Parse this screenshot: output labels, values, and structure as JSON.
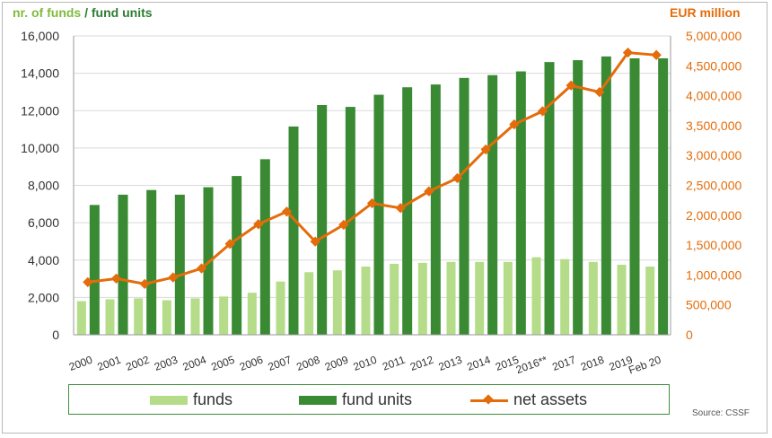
{
  "chart_data": {
    "type": "bar+line",
    "title_left_part1": "nr. of funds",
    "title_left_sep": " / ",
    "title_left_part2": "fund units",
    "title_right": "EUR million",
    "categories": [
      "2000",
      "2001",
      "2002",
      "2003",
      "2004",
      "2005",
      "2006",
      "2007",
      "2008",
      "2009",
      "2010",
      "2011",
      "2012",
      "2013",
      "2014",
      "2015",
      "2016**",
      "2017",
      "2018",
      "2019",
      "Feb 20"
    ],
    "series": [
      {
        "name": "funds",
        "axis": "left",
        "type": "bar",
        "color": "#b5dc88",
        "values": [
          1800,
          1900,
          1950,
          1850,
          1950,
          2050,
          2250,
          2850,
          3350,
          3450,
          3650,
          3800,
          3850,
          3900,
          3900,
          3900,
          4150,
          4050,
          3900,
          3750,
          3650
        ]
      },
      {
        "name": "fund units",
        "axis": "left",
        "type": "bar",
        "color": "#3a8a34",
        "values": [
          6950,
          7500,
          7750,
          7500,
          7900,
          8500,
          9400,
          11150,
          12300,
          12200,
          12850,
          13250,
          13400,
          13750,
          13900,
          14100,
          14600,
          14700,
          14900,
          14800,
          14800
        ]
      },
      {
        "name": "net assets",
        "axis": "right",
        "type": "line",
        "color": "#e46c0a",
        "values": [
          880000,
          940000,
          850000,
          960000,
          1110000,
          1520000,
          1850000,
          2060000,
          1560000,
          1840000,
          2200000,
          2120000,
          2400000,
          2620000,
          3100000,
          3520000,
          3740000,
          4170000,
          4060000,
          4720000,
          4680000
        ]
      }
    ],
    "left_axis": {
      "min": 0,
      "max": 16000,
      "step": 2000,
      "tick_labels": [
        "0",
        "2,000",
        "4,000",
        "6,000",
        "8,000",
        "10,000",
        "12,000",
        "14,000",
        "16,000"
      ]
    },
    "right_axis": {
      "min": 0,
      "max": 5000000,
      "step": 500000,
      "tick_labels": [
        "0",
        "500,000",
        "1,000,000",
        "1,500,000",
        "2,000,000",
        "2,500,000",
        "3,000,000",
        "3,500,000",
        "4,000,000",
        "4,500,000",
        "5,000,000"
      ]
    },
    "grid": "left-axis horizontal gridlines",
    "legend": {
      "position": "bottom",
      "labels": [
        "funds",
        "fund units",
        "net assets"
      ]
    },
    "source": "Source: CSSF"
  }
}
